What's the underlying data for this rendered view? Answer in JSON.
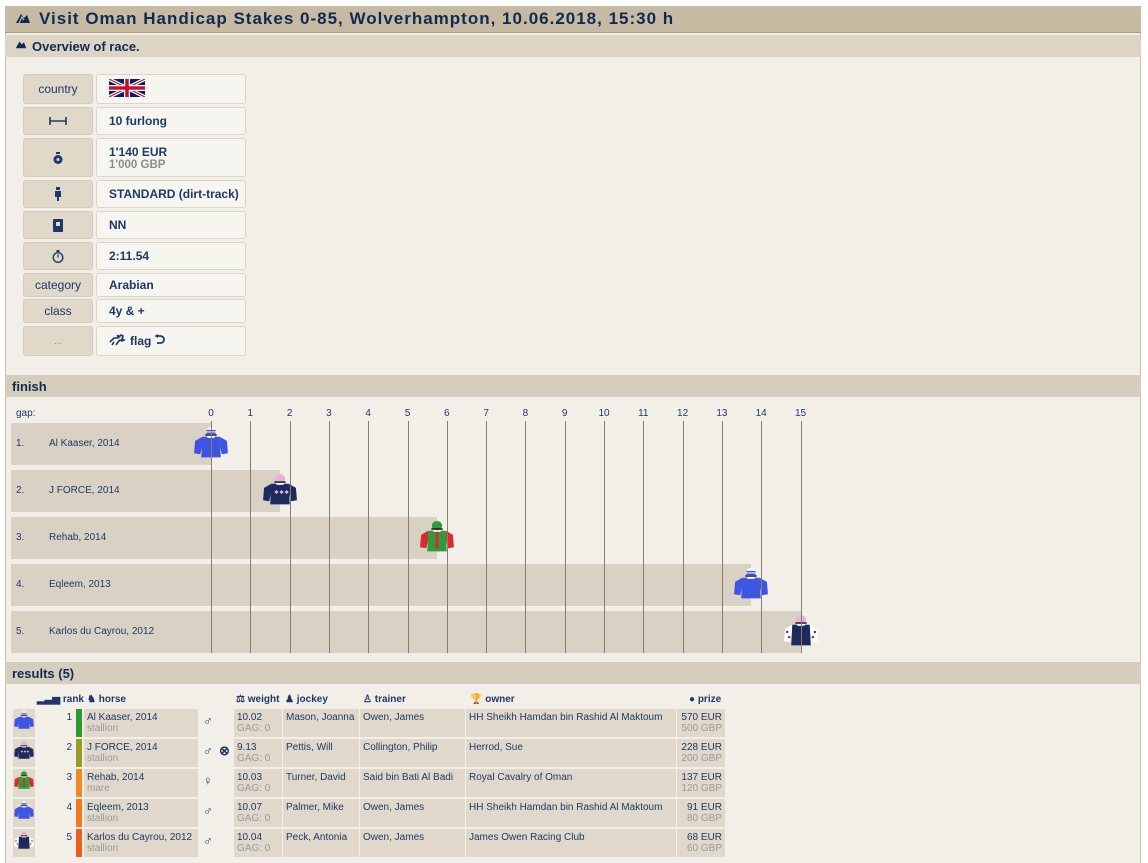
{
  "header": {
    "title": "Visit Oman Handicap Stakes 0-85, Wolverhampton, 10.06.2018, 15:30 h",
    "overview": "Overview of race."
  },
  "info": {
    "country_label": "country",
    "country_flag": "united-kingdom-flag",
    "distance": "10 furlong",
    "prize_primary": "1'140 EUR",
    "prize_secondary": "1'000 GBP",
    "surface": "STANDARD (dirt-track)",
    "going": "NN",
    "time": "2:11.54",
    "category_label": "category",
    "category": "Arabian",
    "class_label": "class",
    "class": "4y & +",
    "more_label": "...",
    "flag_label": "flag"
  },
  "finish": {
    "section_title": "finish",
    "gap_label": "gap:",
    "gap_ticks": [
      "0",
      "1",
      "2",
      "3",
      "4",
      "5",
      "6",
      "7",
      "8",
      "9",
      "10",
      "11",
      "12",
      "13",
      "14",
      "15"
    ],
    "rows": [
      {
        "rank": "1.",
        "name": "Al Kaaser, 2014",
        "gap": 0
      },
      {
        "rank": "2.",
        "name": "J FORCE, 2014",
        "gap": 1.75
      },
      {
        "rank": "3.",
        "name": "Rehab, 2014",
        "gap": 5.75
      },
      {
        "rank": "4.",
        "name": "Eqleem, 2013",
        "gap": 13.75
      },
      {
        "rank": "5.",
        "name": "Karlos du Cayrou, 2012",
        "gap": 15
      }
    ]
  },
  "results": {
    "section_title": "results (5)",
    "headers": {
      "rank": "rank",
      "horse": "horse",
      "weight": "weight",
      "jockey": "jockey",
      "trainer": "trainer",
      "owner": "owner",
      "prize": "prize"
    },
    "rows": [
      {
        "rank": "1",
        "horse": "Al Kaaser, 2014",
        "sex_word": "stallion",
        "sex_symbol": "♂",
        "weight": "10.02",
        "gag": "GAG: 0",
        "jockey": "Mason, Joanna",
        "trainer": "Owen, James",
        "owner": "HH Sheikh Hamdan bin Rashid Al Maktoum",
        "prize_eur": "570 EUR",
        "prize_gbp": "500 GBP",
        "bar_color": "#2e9b2e"
      },
      {
        "rank": "2",
        "horse": "J FORCE, 2014",
        "sex_word": "stallion",
        "sex_symbol": "♂",
        "weight": "9.13",
        "gag": "GAG: 0",
        "jockey": "Pettis, Will",
        "trainer": "Collington, Philip",
        "owner": "Herrod, Sue",
        "prize_eur": "228 EUR",
        "prize_gbp": "200 GBP",
        "bar_color": "#9a9a28"
      },
      {
        "rank": "3",
        "horse": "Rehab, 2014",
        "sex_word": "mare",
        "sex_symbol": "♀",
        "weight": "10.03",
        "gag": "GAG: 0",
        "jockey": "Turner, David",
        "trainer": "Said bin Bati Al Badi",
        "owner": "Royal Cavalry of Oman",
        "prize_eur": "137 EUR",
        "prize_gbp": "120 GBP",
        "bar_color": "#f08a24"
      },
      {
        "rank": "4",
        "horse": "Eqleem, 2013",
        "sex_word": "stallion",
        "sex_symbol": "♂",
        "weight": "10.07",
        "gag": "GAG: 0",
        "jockey": "Palmer, Mike",
        "trainer": "Owen, James",
        "owner": "HH Sheikh Hamdan bin Rashid Al Maktoum",
        "prize_eur": "91 EUR",
        "prize_gbp": "80 GBP",
        "bar_color": "#f07a20"
      },
      {
        "rank": "5",
        "horse": "Karlos du Cayrou, 2012",
        "sex_word": "stallion",
        "sex_symbol": "♂",
        "weight": "10.04",
        "gag": "GAG: 0",
        "jockey": "Peck, Antonia",
        "trainer": "Owen, James",
        "owner": "James Owen Racing Club",
        "prize_eur": "68 EUR",
        "prize_gbp": "60 GBP",
        "bar_color": "#e8601c"
      }
    ]
  },
  "colors": {
    "frame_bg": "#f2efe8",
    "title_bar": "#c6baa3",
    "row_bg": "#d9d2c4",
    "text": "#0f2a52"
  }
}
